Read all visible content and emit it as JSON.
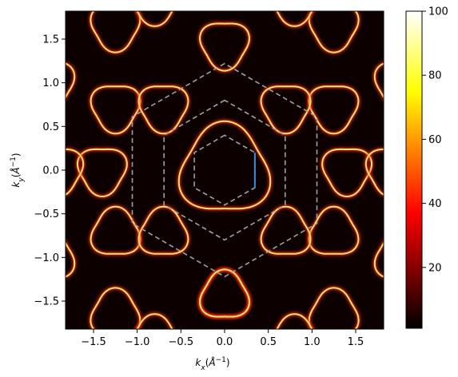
{
  "chart_data": {
    "type": "heatmap",
    "title": "",
    "xlabel_parts": {
      "base": "k",
      "sub": "x",
      "unit_base": "Å",
      "unit_sup": "−1"
    },
    "ylabel_parts": {
      "base": "k",
      "sub": "y",
      "unit_base": "Å",
      "unit_sup": "−1"
    },
    "xlim": [
      -1.82,
      1.82
    ],
    "ylim": [
      -1.82,
      1.82
    ],
    "x_ticks": [
      -1.5,
      -1.0,
      -0.5,
      0.0,
      0.5,
      1.0,
      1.5
    ],
    "x_tick_labels": [
      "−1.5",
      "−1.0",
      "−0.5",
      "0.0",
      "0.5",
      "1.0",
      "1.5"
    ],
    "y_ticks": [
      -1.5,
      -1.0,
      -0.5,
      0.0,
      0.5,
      1.0,
      1.5
    ],
    "y_tick_labels": [
      "−1.5",
      "−1.0",
      "−0.5",
      "0.0",
      "0.5",
      "1.0",
      "1.5"
    ],
    "colormap": "hot",
    "colorbar": {
      "range": [
        1,
        100
      ],
      "ticks": [
        20,
        40,
        60,
        80,
        100
      ],
      "tick_labels": [
        "20",
        "40",
        "60",
        "80",
        "100"
      ]
    },
    "hexagons": [
      {
        "name": "inner",
        "radius": 0.4,
        "color": "#a0a0a0",
        "dashed": true
      },
      {
        "name": "middle",
        "radius": 0.8,
        "color": "#a0a0a0",
        "dashed": true
      },
      {
        "name": "outer",
        "radius": 1.22,
        "color": "#a0a0a0",
        "dashed": true
      }
    ],
    "path_segment": {
      "from": [
        0.346,
        0.2
      ],
      "to": [
        0.346,
        -0.2
      ],
      "color": "#3a8fd9"
    },
    "fermi_contours": {
      "center_loop_radius": 0.5,
      "pocket_radius": 0.27,
      "pocket_centers": [
        [
          0.0,
          1.44
        ],
        [
          0.0,
          -1.44
        ],
        [
          1.248,
          0.72
        ],
        [
          -1.248,
          0.72
        ],
        [
          1.248,
          -0.72
        ],
        [
          -1.248,
          -0.72
        ],
        [
          -0.7,
          0.72
        ],
        [
          0.7,
          0.72
        ],
        [
          -0.7,
          -0.72
        ],
        [
          0.7,
          -0.72
        ],
        [
          0.0,
          -1.44
        ],
        [
          -1.4,
          0.0
        ],
        [
          1.4,
          0.0
        ],
        [
          -1.25,
          1.65
        ],
        [
          1.25,
          1.65
        ],
        [
          -1.25,
          -1.65
        ],
        [
          1.25,
          -1.65
        ],
        [
          -2.0,
          1.0
        ],
        [
          2.0,
          1.0
        ],
        [
          -2.0,
          -1.0
        ],
        [
          2.0,
          -1.0
        ],
        [
          -1.9,
          0.0
        ],
        [
          1.9,
          0.0
        ],
        [
          -0.8,
          1.95
        ],
        [
          0.8,
          1.95
        ],
        [
          -0.8,
          -1.95
        ],
        [
          0.8,
          -1.95
        ]
      ],
      "color": "#ffe27a"
    }
  }
}
